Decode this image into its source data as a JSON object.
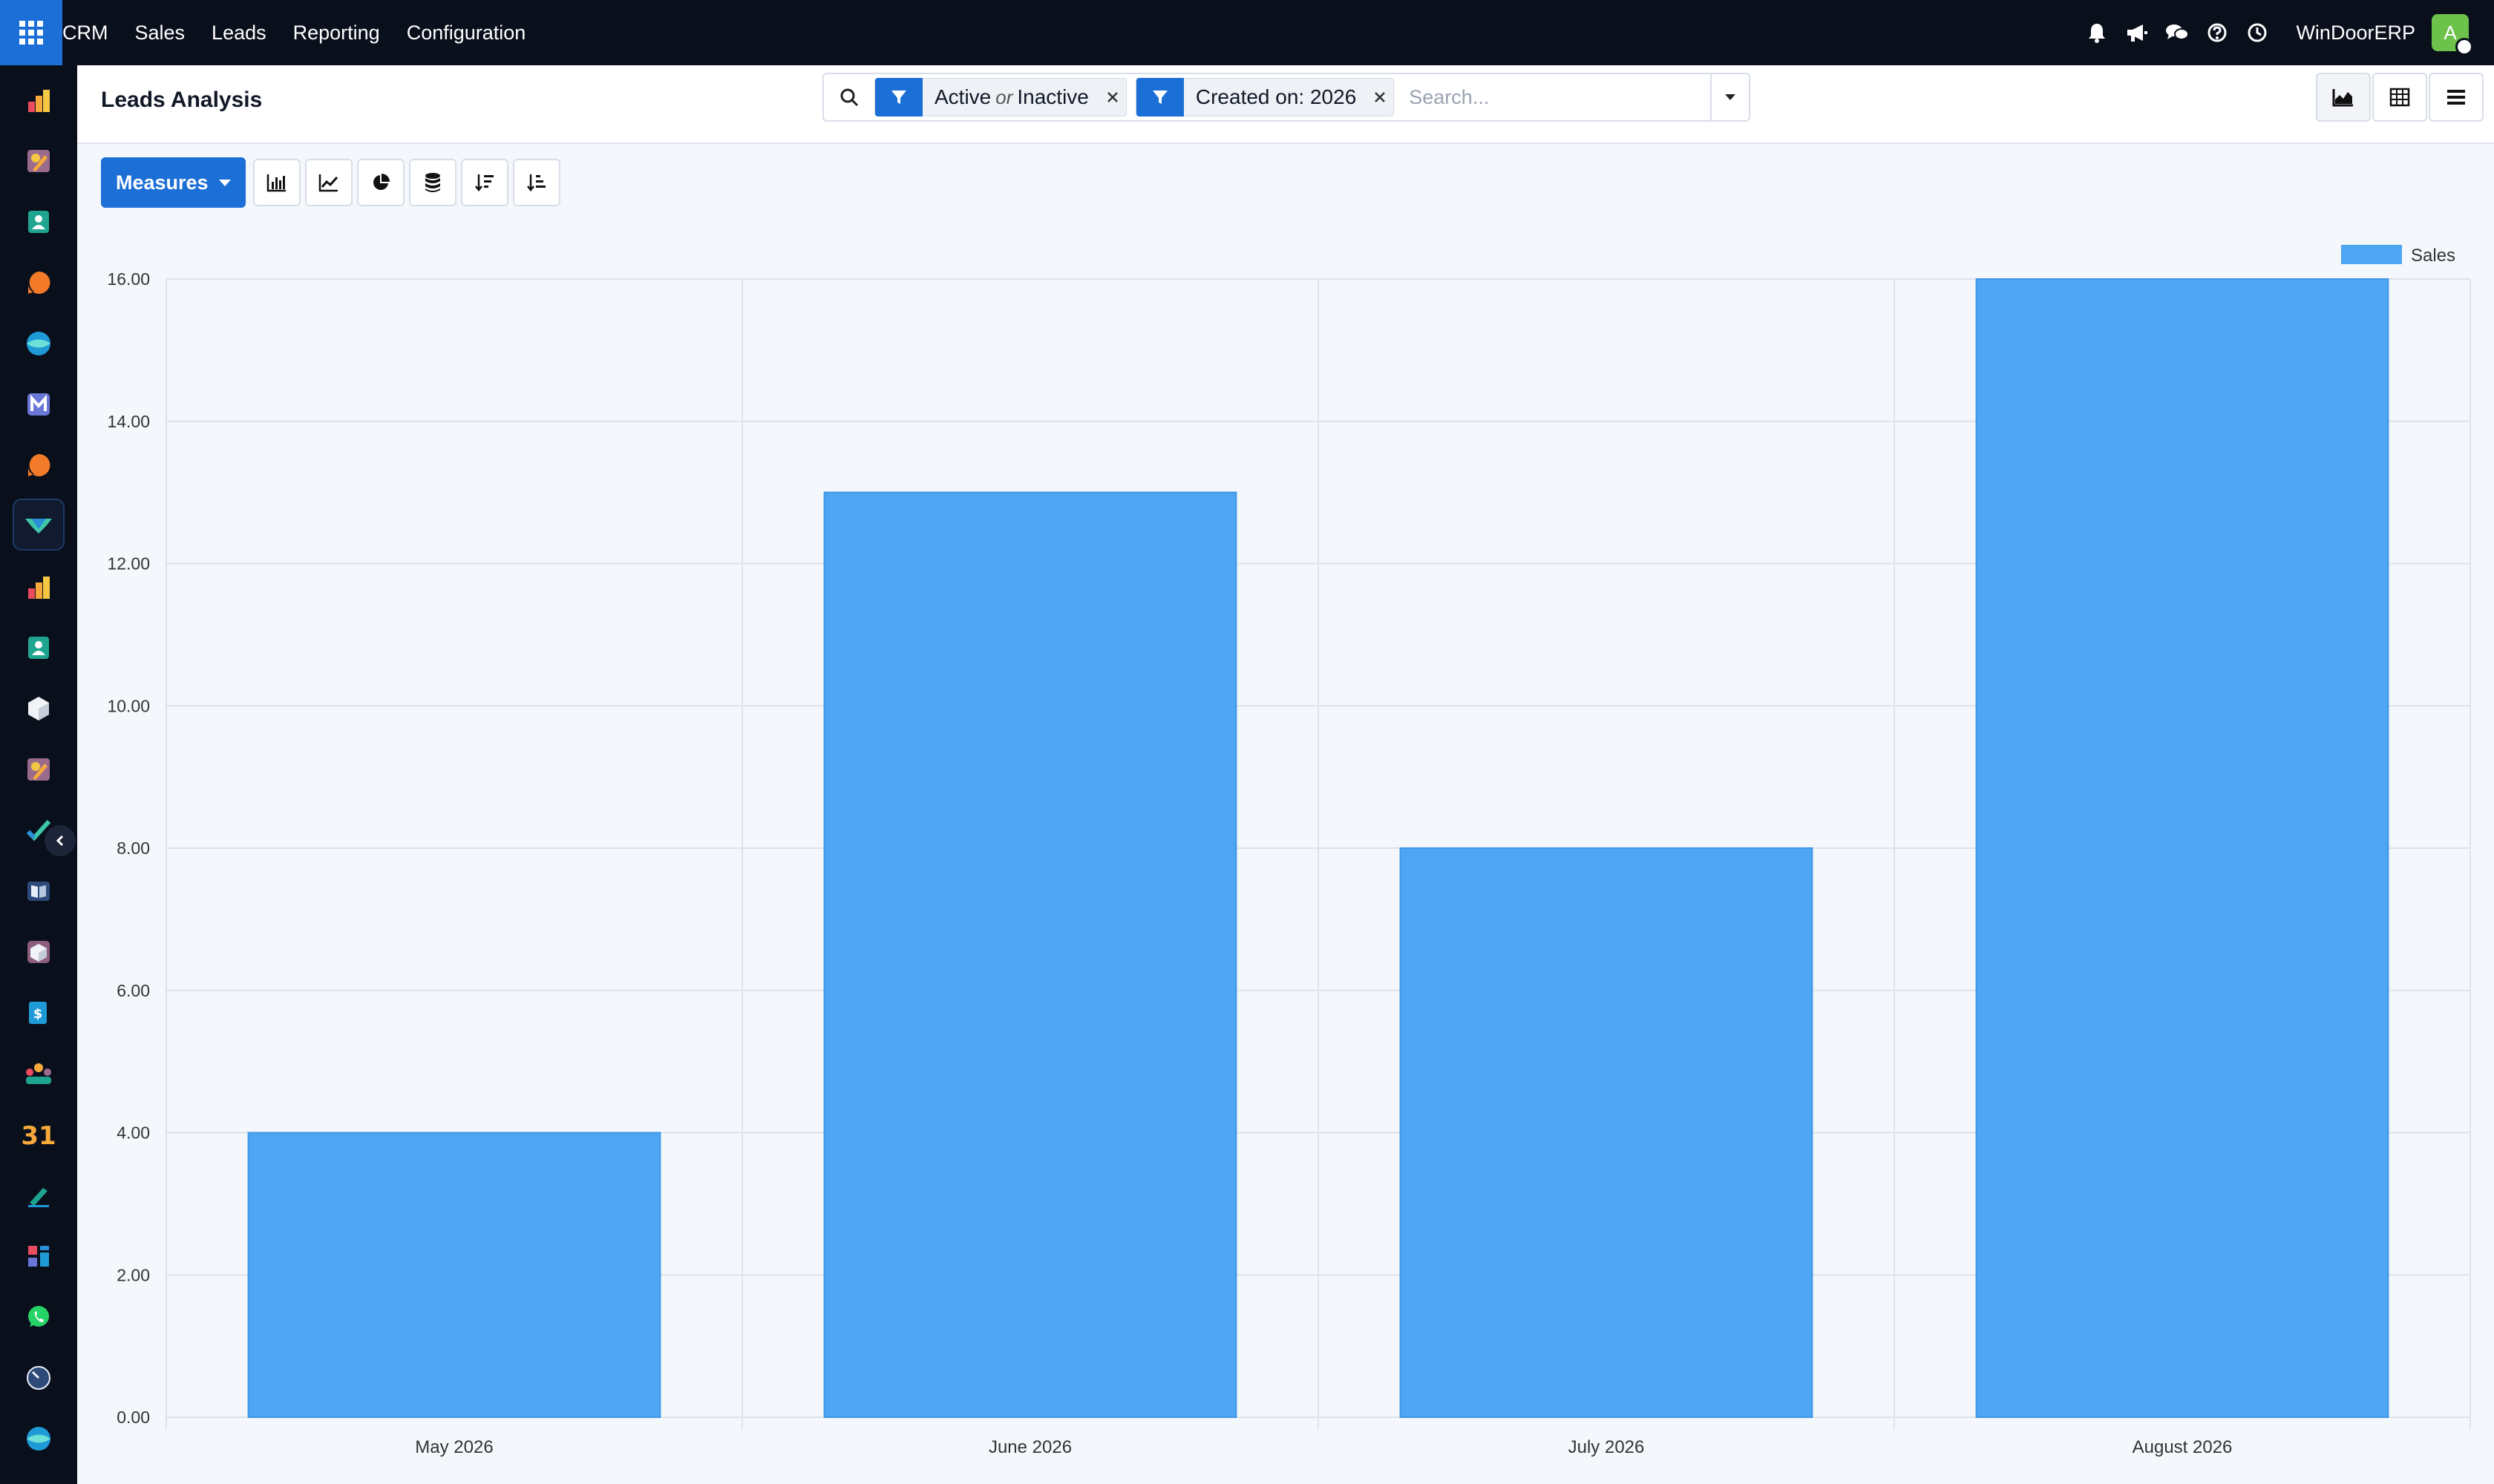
{
  "topbar": {
    "menu": [
      "CRM",
      "Sales",
      "Leads",
      "Reporting",
      "Configuration"
    ],
    "company": "WinDoorERP",
    "avatar_letter": "A",
    "icons": [
      "bell-icon",
      "megaphone-icon",
      "chat-icon",
      "help-icon",
      "clock-icon"
    ]
  },
  "sidebar": {
    "icons": [
      "app-icon-1",
      "app-icon-2",
      "app-icon-3",
      "app-icon-4",
      "app-icon-5",
      "app-icon-6",
      "app-icon-7",
      "crm-app-icon",
      "app-icon-9",
      "app-icon-10",
      "app-icon-11",
      "app-icon-12",
      "app-icon-13",
      "app-icon-14",
      "app-icon-15",
      "app-icon-16",
      "app-icon-17",
      "calendar-app-icon",
      "app-icon-19",
      "app-icon-20",
      "whatsapp-app-icon",
      "app-icon-22",
      "app-icon-23"
    ],
    "calendar_text": "31"
  },
  "control_panel": {
    "title": "Leads Analysis",
    "facets": [
      {
        "parts": [
          "Active",
          "or",
          "Inactive"
        ]
      },
      {
        "text": "Created on: 2026"
      }
    ],
    "search_placeholder": "Search..."
  },
  "toolbar": {
    "measures_label": "Measures"
  },
  "chart_data": {
    "type": "bar",
    "categories": [
      "May 2026",
      "June 2026",
      "July 2026",
      "August 2026"
    ],
    "series": [
      {
        "name": "Sales",
        "values": [
          4,
          13,
          8,
          16
        ],
        "color": "#4ea6f2"
      }
    ],
    "ylim": [
      0,
      16
    ],
    "yticks": [
      "0.00",
      "2.00",
      "4.00",
      "6.00",
      "8.00",
      "10.00",
      "12.00",
      "14.00",
      "16.00"
    ],
    "grid": true,
    "legend": "top-right"
  }
}
